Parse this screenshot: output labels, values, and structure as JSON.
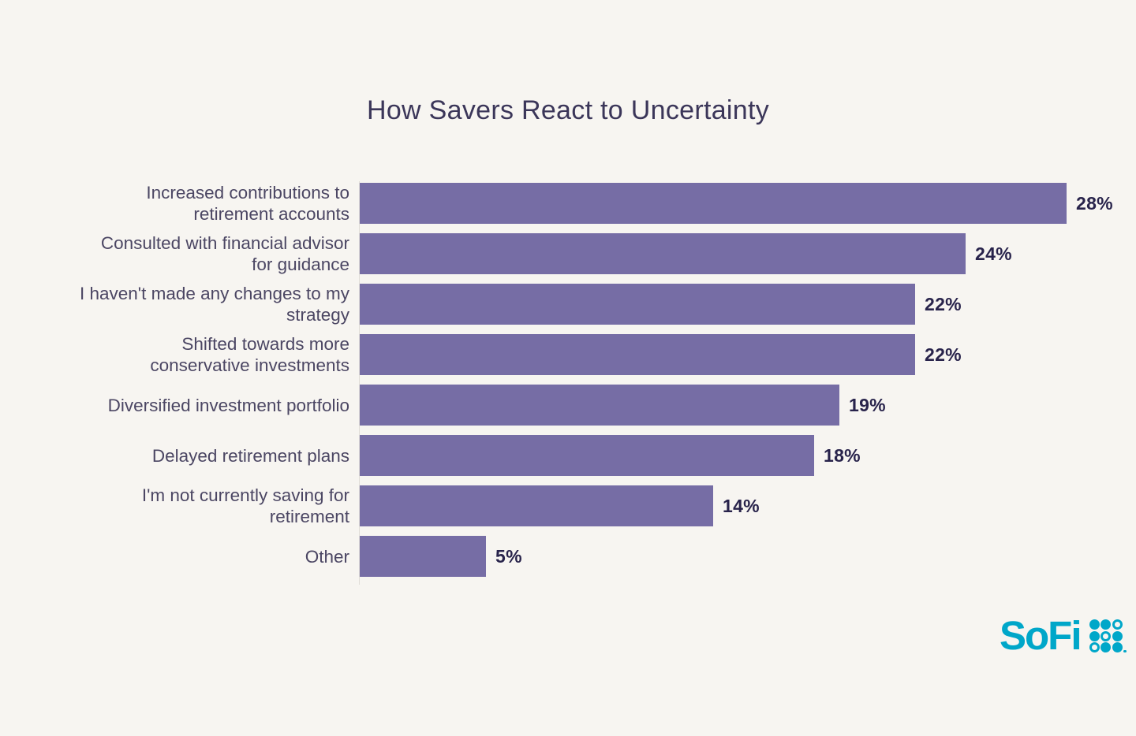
{
  "title": "How Savers React to Uncertainty",
  "chart_data": {
    "type": "bar",
    "orientation": "horizontal",
    "title": "How Savers React to Uncertainty",
    "categories": [
      "Increased contributions to\nretirement accounts",
      "Consulted with financial advisor\nfor guidance",
      "I haven't made any changes to my\nstrategy",
      "Shifted towards more\nconservative investments",
      "Diversified investment portfolio",
      "Delayed retirement plans",
      "I'm not currently saving for\nretirement",
      "Other"
    ],
    "values": [
      28,
      24,
      22,
      22,
      19,
      18,
      14,
      5
    ],
    "value_labels": [
      "28%",
      "24%",
      "22%",
      "22%",
      "19%",
      "18%",
      "14%",
      "5%"
    ],
    "xlim": [
      0,
      29.5
    ],
    "grid": false,
    "legend": false,
    "bar_color": "#766DA5",
    "category_label_color": "#4B4663",
    "value_label_color": "#28234B",
    "title_color": "#3B3659",
    "background_color": "#F7F5F1",
    "axis_line_color": "#E0DDD8"
  },
  "branding": {
    "logo_text": "SoFi",
    "logo_color": "#00A7C9",
    "logo_mark": "sofi-dot-grid-icon",
    "dot_pattern": [
      "filled",
      "filled",
      "outline",
      "filled",
      "outline",
      "filled",
      "outline",
      "filled",
      "filled"
    ]
  }
}
